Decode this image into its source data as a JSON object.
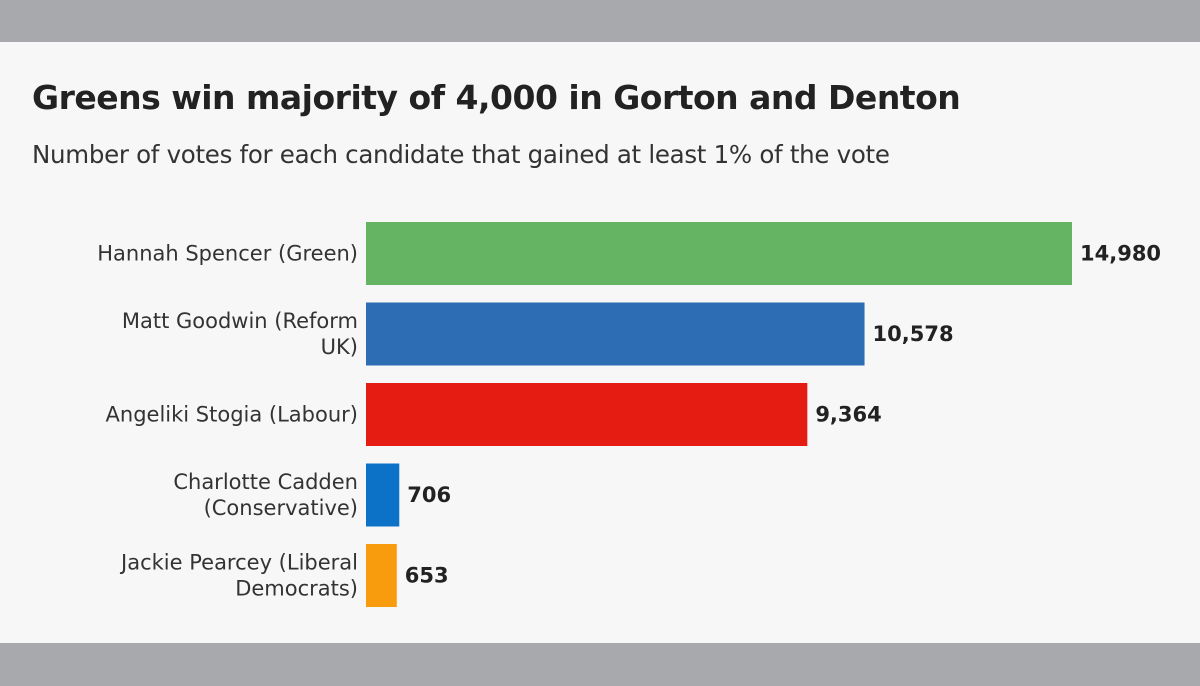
{
  "chart_data": {
    "type": "bar",
    "orientation": "horizontal",
    "title": "Greens win majority of 4,000 in Gorton and Denton",
    "subtitle": "Number of votes for each candidate that gained at least 1% of the vote",
    "categories": [
      [
        "Hannah Spencer (Green)"
      ],
      [
        "Matt Goodwin (Reform",
        "UK)"
      ],
      [
        "Angeliki Stogia (Labour)"
      ],
      [
        "Charlotte Cadden",
        "(Conservative)"
      ],
      [
        "Jackie Pearcey (Liberal",
        "Democrats)"
      ]
    ],
    "values": [
      14980,
      10578,
      9364,
      706,
      653
    ],
    "value_labels": [
      "14,980",
      "10,578",
      "9,364",
      "706",
      "653"
    ],
    "colors": [
      "#64b464",
      "#2d6db3",
      "#e51c12",
      "#0b72c8",
      "#f89b0c"
    ],
    "xlim": [
      0,
      14980
    ],
    "grid": false,
    "legend": "none"
  }
}
